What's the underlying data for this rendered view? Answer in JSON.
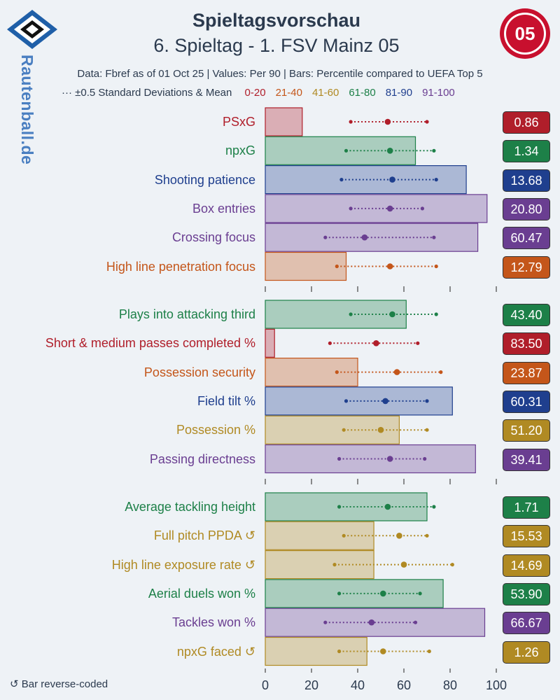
{
  "header": {
    "title": "Spieltagsvorschau",
    "subtitle": "6. Spieltag - 1. FSV Mainz 05",
    "info": "Data: Fbref as of 01 Oct 25 | Values: Per 90 | Bars: Percentile compared to UEFA Top 5",
    "legend_mean": "··· ±0.5 Standard Deviations & Mean",
    "brand": "Rautenball.de",
    "footnote": "↺ Bar reverse-coded"
  },
  "legend_bins": [
    {
      "label": "0-20",
      "color": "#b01e2a"
    },
    {
      "label": "21-40",
      "color": "#c4561a"
    },
    {
      "label": "41-60",
      "color": "#b08a23"
    },
    {
      "label": "61-80",
      "color": "#1d8048"
    },
    {
      "label": "81-90",
      "color": "#1f3f8e"
    },
    {
      "label": "91-100",
      "color": "#6a3e91"
    }
  ],
  "chart_data": {
    "type": "bar",
    "orientation": "horizontal",
    "xlim": [
      0,
      100
    ],
    "xticks": [
      0,
      20,
      40,
      60,
      80,
      100
    ],
    "groups": [
      [
        {
          "label": "PSxG",
          "percentile": 16,
          "value": "0.86",
          "color": "#b01e2a",
          "ci": [
            37,
            70
          ],
          "mean": 53
        },
        {
          "label": "npxG",
          "percentile": 65,
          "value": "1.34",
          "color": "#1d8048",
          "ci": [
            35,
            73
          ],
          "mean": 54
        },
        {
          "label": "Shooting patience",
          "percentile": 87,
          "value": "13.68",
          "color": "#1f3f8e",
          "ci": [
            33,
            74
          ],
          "mean": 55
        },
        {
          "label": "Box entries",
          "percentile": 96,
          "value": "20.80",
          "color": "#6a3e91",
          "ci": [
            37,
            68
          ],
          "mean": 54
        },
        {
          "label": "Crossing focus",
          "percentile": 92,
          "value": "60.47",
          "color": "#6a3e91",
          "ci": [
            26,
            73
          ],
          "mean": 43
        },
        {
          "label": "High line penetration focus",
          "percentile": 35,
          "value": "12.79",
          "color": "#c4561a",
          "ci": [
            31,
            74
          ],
          "mean": 54
        }
      ],
      [
        {
          "label": "Plays into attacking third",
          "percentile": 61,
          "value": "43.40",
          "color": "#1d8048",
          "ci": [
            37,
            74
          ],
          "mean": 55
        },
        {
          "label": "Short & medium passes completed %",
          "percentile": 4,
          "value": "83.50",
          "color": "#b01e2a",
          "ci": [
            28,
            66
          ],
          "mean": 48
        },
        {
          "label": "Possession security",
          "percentile": 40,
          "value": "23.87",
          "color": "#c4561a",
          "ci": [
            31,
            76
          ],
          "mean": 57
        },
        {
          "label": "Field tilt %",
          "percentile": 81,
          "value": "60.31",
          "color": "#1f3f8e",
          "ci": [
            35,
            70
          ],
          "mean": 52
        },
        {
          "label": "Possession %",
          "percentile": 58,
          "value": "51.20",
          "color": "#b08a23",
          "ci": [
            34,
            70
          ],
          "mean": 50
        },
        {
          "label": "Passing directness",
          "percentile": 91,
          "value": "39.41",
          "color": "#6a3e91",
          "ci": [
            32,
            69
          ],
          "mean": 54
        }
      ],
      [
        {
          "label": "Average tackling height",
          "percentile": 70,
          "value": "1.71",
          "color": "#1d8048",
          "ci": [
            32,
            73
          ],
          "mean": 53
        },
        {
          "label": "Full pitch PPDA ↺",
          "percentile": 47,
          "value": "15.53",
          "color": "#b08a23",
          "ci": [
            34,
            70
          ],
          "mean": 58
        },
        {
          "label": "High line exposure rate ↺",
          "percentile": 47,
          "value": "14.69",
          "color": "#b08a23",
          "ci": [
            30,
            81
          ],
          "mean": 60
        },
        {
          "label": "Aerial duels won %",
          "percentile": 77,
          "value": "53.90",
          "color": "#1d8048",
          "ci": [
            32,
            67
          ],
          "mean": 51
        },
        {
          "label": "Tackles won %",
          "percentile": 95,
          "value": "66.67",
          "color": "#6a3e91",
          "ci": [
            26,
            65
          ],
          "mean": 46
        },
        {
          "label": "npxG faced ↺",
          "percentile": 44,
          "value": "1.26",
          "color": "#b08a23",
          "ci": [
            32,
            71
          ],
          "mean": 51
        }
      ]
    ]
  }
}
